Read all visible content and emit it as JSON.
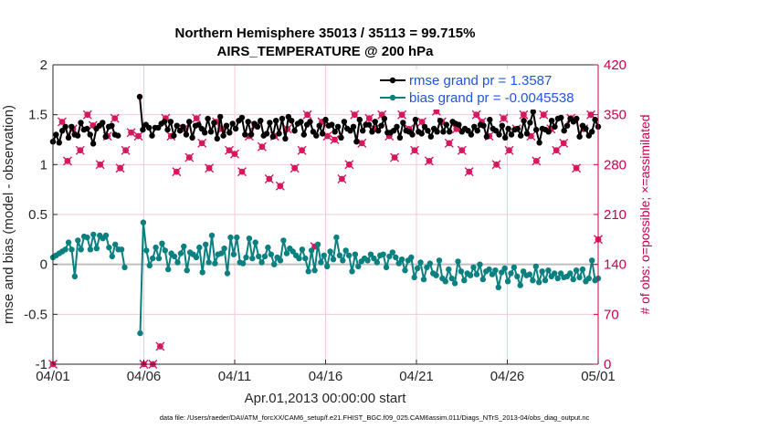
{
  "chart_data": {
    "type": "line",
    "title_line1": "Northern Hemisphere 35013 / 35113 = 99.715%",
    "title_line2": "AIRS_TEMPERATURE @ 200 hPa",
    "xlabel": "Apr.01,2013 00:00:00 start",
    "ylabel_left": "rmse and bias (model - observation)",
    "ylabel_right": "# of obs: o=possible; ×=assimilated",
    "footer": "data file: /Users/raeder/DAI/ATM_forcXX/CAM6_setup/f.e21.FHIST_BGC.f09_025.CAM6assim.011/Diags_NTrS_2013-04/obs_diag_output.nc",
    "xlim": [
      0,
      30
    ],
    "ylim_left": [
      -1,
      2
    ],
    "ylim_right": [
      0,
      420
    ],
    "x_ticks": [
      0,
      5,
      10,
      15,
      20,
      25,
      30
    ],
    "x_tick_labels": [
      "04/01",
      "04/06",
      "04/11",
      "04/16",
      "04/21",
      "04/26",
      "05/01"
    ],
    "y_ticks_left": [
      -1,
      -0.5,
      0,
      0.5,
      1,
      1.5,
      2
    ],
    "y_tick_labels_left": [
      "-1",
      "-0.5",
      "0",
      "0.5",
      "1",
      "1.5",
      "2"
    ],
    "y_ticks_right": [
      0,
      70,
      140,
      210,
      280,
      350,
      420
    ],
    "y_tick_labels_right": [
      "0",
      "70",
      "140",
      "210",
      "280",
      "350",
      "420"
    ],
    "grid": true,
    "legend_position": "top-right",
    "colors": {
      "rmse": "#000000",
      "bias": "#0a8080",
      "obs": "#d6185e",
      "zero_line": "#bfbfbf",
      "grid": "#f2c9d8",
      "axis": "#262626",
      "right_axis": "#c8004f",
      "legend_text": "#1f55e0"
    },
    "series": [
      {
        "name": "rmse grand pr = 1.3587",
        "axis": "left",
        "values": [
          1.23,
          1.3,
          1.22,
          1.34,
          1.38,
          1.27,
          1.38,
          1.3,
          1.29,
          1.42,
          1.35,
          1.36,
          1.3,
          1.21,
          1.36,
          1.39,
          1.42,
          1.28,
          1.38,
          1.39,
          1.3,
          1.29,
          null,
          null,
          null,
          null,
          null,
          null,
          1.68,
          1.35,
          1.4,
          1.37,
          1.29,
          1.37,
          1.37,
          1.41,
          1.43,
          1.35,
          1.43,
          1.29,
          1.39,
          1.34,
          1.38,
          1.3,
          1.43,
          1.27,
          1.39,
          1.4,
          1.36,
          1.32,
          1.46,
          1.33,
          1.42,
          1.26,
          1.48,
          1.29,
          1.39,
          1.32,
          1.41,
          1.36,
          1.44,
          1.47,
          1.3,
          1.43,
          1.3,
          1.41,
          1.38,
          1.44,
          1.29,
          1.31,
          1.42,
          1.28,
          1.44,
          1.31,
          1.46,
          1.26,
          1.48,
          1.44,
          1.34,
          1.41,
          1.43,
          1.3,
          1.4,
          1.43,
          1.33,
          1.29,
          1.39,
          1.31,
          1.45,
          1.39,
          1.4,
          1.33,
          1.38,
          1.27,
          1.43,
          1.36,
          1.34,
          1.38,
          1.23,
          1.45,
          1.34,
          1.4,
          1.4,
          1.33,
          1.43,
          1.34,
          1.39,
          1.46,
          1.32,
          1.32,
          1.34,
          1.38,
          1.27,
          1.42,
          1.34,
          1.33,
          1.3,
          1.45,
          1.33,
          1.31,
          1.38,
          1.34,
          1.28,
          1.36,
          1.33,
          1.44,
          1.33,
          1.4,
          1.33,
          1.43,
          1.41,
          1.4,
          1.33,
          1.36,
          1.34,
          1.3,
          1.38,
          1.34,
          1.4,
          1.39,
          1.28,
          1.45,
          1.36,
          1.34,
          1.3,
          1.39,
          1.27,
          1.36,
          1.3,
          1.35,
          1.36,
          1.29,
          1.44,
          1.31,
          1.42,
          1.53,
          1.35,
          1.22,
          1.36,
          1.35,
          1.33,
          1.44,
          1.38,
          1.46,
          1.47,
          1.34,
          1.39,
          1.46,
          1.43,
          1.46,
          1.28,
          1.39,
          1.36,
          1.29,
          1.33,
          1.45,
          1.38
        ]
      },
      {
        "name": "bias grand pr = -0.0045538",
        "axis": "left",
        "values": [
          0.07,
          0.09,
          0.11,
          0.13,
          0.15,
          0.22,
          0.15,
          -0.12,
          0.24,
          0.15,
          0.28,
          0.27,
          0.15,
          0.3,
          0.16,
          0.29,
          0.26,
          0.29,
          0.17,
          0.08,
          0.2,
          0.15,
          0.15,
          -0.03,
          null,
          null,
          null,
          null,
          -0.69,
          0.42,
          0.14,
          -0.01,
          0.06,
          0.17,
          0.06,
          0.21,
          0.14,
          -0.05,
          0.11,
          0.08,
          0.02,
          0.11,
          0.18,
          -0.06,
          0.12,
          0.1,
          0.07,
          0.17,
          -0.08,
          0.2,
          0.02,
          0.29,
          0.01,
          0.1,
          0.11,
          0.16,
          -0.09,
          0.27,
          0.1,
          0.27,
          0.02,
          0.01,
          0.07,
          0.26,
          0.06,
          0.22,
          0.08,
          0.02,
          0.08,
          0.17,
          0.1,
          0.0,
          0.07,
          0.04,
          0.24,
          0.11,
          0.16,
          0.13,
          0.09,
          0.06,
          0.15,
          0.06,
          -0.07,
          0.14,
          -0.06,
          0.2,
          0.02,
          0.09,
          -0.02,
          0.13,
          0.05,
          0.27,
          0.09,
          0.04,
          0.14,
          0.09,
          -0.07,
          0.1,
          -0.02,
          0.03,
          0.06,
          0.04,
          0.1,
          0.06,
          0.02,
          0.09,
          0.1,
          -0.03,
          0.08,
          0.12,
          0.07,
          0.01,
          0.05,
          -0.06,
          0.04,
          0.07,
          -0.13,
          -0.04,
          0.02,
          -0.15,
          -0.03,
          0.01,
          -0.09,
          -0.11,
          0.04,
          -0.14,
          -0.17,
          -0.05,
          -0.14,
          -0.19,
          0.03,
          -0.07,
          -0.16,
          -0.09,
          -0.11,
          -0.03,
          -0.1,
          0.0,
          -0.15,
          -0.07,
          -0.05,
          -0.1,
          -0.06,
          -0.23,
          -0.08,
          -0.04,
          -0.17,
          -0.09,
          -0.03,
          -0.12,
          -0.21,
          -0.07,
          -0.11,
          -0.1,
          -0.16,
          -0.02,
          -0.18,
          -0.07,
          -0.16,
          -0.06,
          -0.12,
          -0.09,
          -0.14,
          -0.09,
          -0.13,
          -0.12,
          -0.09,
          -0.15,
          -0.06,
          -0.13,
          -0.05,
          -0.17,
          -0.14,
          0.04,
          -0.16,
          -0.14
        ]
      },
      {
        "name": "obs possible / assimilated",
        "axis": "right",
        "x": [
          0,
          0.5,
          0.8,
          1.1,
          1.5,
          1.9,
          2.2,
          2.6,
          3.0,
          3.4,
          3.7,
          4.0,
          4.3,
          4.7,
          5.0,
          5.5,
          5.9,
          6.2,
          6.5,
          6.8,
          7.2,
          7.5,
          7.9,
          8.2,
          8.6,
          9.0,
          9.3,
          9.7,
          10.0,
          10.4,
          10.8,
          11.1,
          11.5,
          11.9,
          12.2,
          12.5,
          12.9,
          13.3,
          13.7,
          14.0,
          14.4,
          14.8,
          15.1,
          15.5,
          15.9,
          16.3,
          16.6,
          17.0,
          17.4,
          17.7,
          18.1,
          18.5,
          18.8,
          19.2,
          19.6,
          19.9,
          20.3,
          20.7,
          21.1,
          21.4,
          21.8,
          22.2,
          22.5,
          22.9,
          23.3,
          23.6,
          24.0,
          24.4,
          24.8,
          25.1,
          25.5,
          25.9,
          26.3,
          26.6,
          27.0,
          27.4,
          27.7,
          28.1,
          28.5,
          28.8,
          29.2,
          29.6,
          30.0
        ],
        "values": [
          0,
          340,
          285,
          330,
          300,
          350,
          335,
          280,
          320,
          345,
          275,
          300,
          325,
          320,
          0,
          0,
          25,
          345,
          320,
          270,
          330,
          290,
          345,
          310,
          275,
          340,
          330,
          300,
          295,
          270,
          320,
          335,
          305,
          260,
          320,
          250,
          330,
          275,
          300,
          350,
          165,
          340,
          320,
          315,
          260,
          280,
          350,
          310,
          345,
          330,
          350,
          320,
          290,
          350,
          330,
          300,
          340,
          285,
          355,
          340,
          310,
          330,
          300,
          270,
          350,
          340,
          320,
          280,
          345,
          300,
          330,
          350,
          320,
          285,
          350,
          330,
          300,
          310,
          345,
          275,
          330,
          350,
          175
        ]
      }
    ],
    "legend": [
      {
        "label": "rmse grand pr = 1.3587",
        "series": "rmse"
      },
      {
        "label": "bias grand pr = -0.0045538",
        "series": "bias"
      }
    ]
  }
}
